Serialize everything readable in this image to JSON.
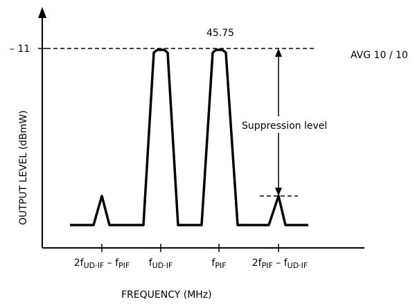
{
  "diagram": {
    "y_axis_label": "OUTPUT LEVEL   (dBmW)",
    "x_axis_label": "FREQUENCY    (MHz)",
    "level_tick": "– 11",
    "peak_value": "45.75",
    "avg_label": "AVG  10 / 10",
    "suppression_label": "Suppression level",
    "x_ticks": [
      {
        "pre": "2f",
        "sub1": "UD·IF",
        "mid": " – f",
        "sub2": "PIF"
      },
      {
        "pre": "f",
        "sub1": "UD·IF",
        "mid": "",
        "sub2": ""
      },
      {
        "pre": "f",
        "sub1": "PIF",
        "mid": "",
        "sub2": ""
      },
      {
        "pre": "2f",
        "sub1": "PIF",
        "mid": " – f",
        "sub2": "UD·IF"
      }
    ]
  }
}
